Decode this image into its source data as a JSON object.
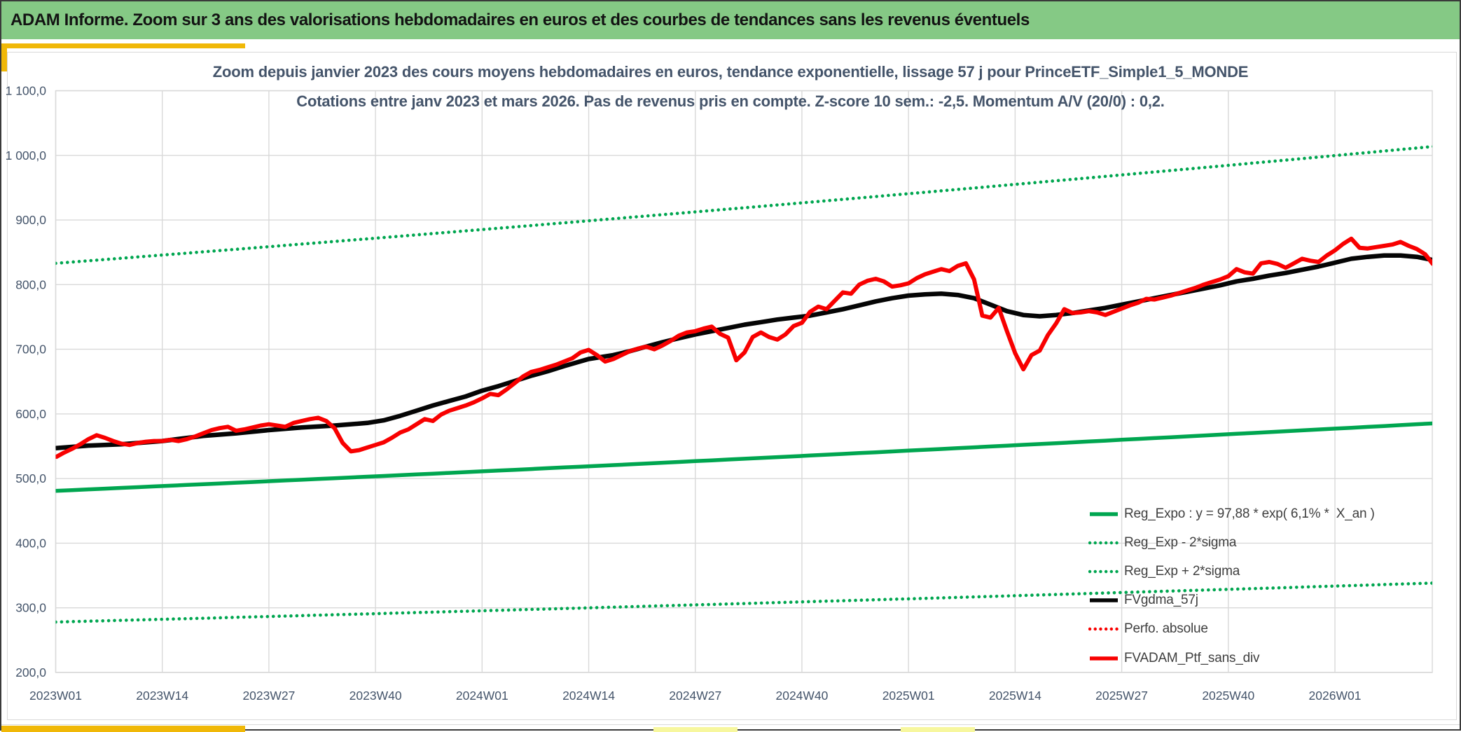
{
  "header": {
    "title": "ADAM Informe. Zoom sur 3 ans des valorisations hebdomadaires en euros et des courbes de tendances sans les revenus éventuels"
  },
  "chart": {
    "title_line1": "Zoom depuis janvier 2023 des cours moyens hebdomadaires en euros, tendance exponentielle, lissage 57 j pour PrinceETF_Simple1_5_MONDE",
    "title_line2": "Cotations entre janv 2023 et mars 2026. Pas de revenus pris en compte. Z-score 10 sem.: -2,5. Momentum A/V (20/0) : 0,2.",
    "y_labels": [
      "1 100,0",
      "1 000,0",
      "900,0",
      "800,0",
      "700,0",
      "600,0",
      "500,0",
      "400,0",
      "300,0",
      "200,0"
    ],
    "x_labels": [
      "2023W01",
      "2023W14",
      "2023W27",
      "2023W40",
      "2024W01",
      "2024W14",
      "2024W27",
      "2024W40",
      "2025W01",
      "2025W14",
      "2025W27",
      "2025W40",
      "2026W01"
    ],
    "legend": [
      {
        "label": "Reg_Expo : y = 97,88 * exp( 6,1% *  X_an )",
        "color": "#00A650",
        "style": "solid"
      },
      {
        "label": "Reg_Exp - 2*sigma",
        "color": "#00A650",
        "style": "dotted"
      },
      {
        "label": "Reg_Exp + 2*sigma",
        "color": "#00A650",
        "style": "dotted"
      },
      {
        "label": "FVgdma_57j",
        "color": "#050505",
        "style": "solid"
      },
      {
        "label": "Perfo. absolue",
        "color": "#F80000",
        "style": "dotted"
      },
      {
        "label": "FVADAM_Ptf_sans_div",
        "color": "#F80000",
        "style": "solid"
      }
    ],
    "colors": {
      "green": "#00A650",
      "red": "#F80000",
      "black": "#050505",
      "grid": "#D9D9D9",
      "axis_text": "#44546A",
      "header_green": "#85C985",
      "gold": "#F0B808",
      "pale_yellow": "#F7F79E",
      "title_text": "#44546A"
    }
  },
  "chart_data": {
    "type": "line",
    "title": "Zoom depuis janvier 2023 des cours moyens hebdomadaires en euros, tendance exponentielle, lissage 57 j pour PrinceETF_Simple1_5_MONDE",
    "x_axis": {
      "unit": "ISO week",
      "start": "2023W01",
      "end": "2026W13",
      "weeks_total": 168,
      "tick_week_indices": [
        0,
        13,
        26,
        39,
        52,
        65,
        78,
        91,
        104,
        117,
        130,
        143,
        156
      ],
      "tick_labels": [
        "2023W01",
        "2023W14",
        "2023W27",
        "2023W40",
        "2024W01",
        "2024W14",
        "2024W27",
        "2024W40",
        "2025W01",
        "2025W14",
        "2025W27",
        "2025W40",
        "2026W01"
      ]
    },
    "y_axis": {
      "min": 200,
      "max": 1100,
      "step": 100,
      "grid": true
    },
    "legend_position": "inside-bottom-right",
    "series": [
      {
        "name": "Reg_Expo : y = 97,88 * exp( 6,1% *  X_an )",
        "type": "exponential-trend",
        "style": "solid",
        "color": "#00A650",
        "model": {
          "start_value": 481,
          "annual_growth_rate": 0.061,
          "end_value": 585
        }
      },
      {
        "name": "Reg_Exp - 2*sigma",
        "type": "exponential-trend",
        "style": "dotted",
        "color": "#00A650",
        "model": {
          "start_value": 278,
          "annual_growth_rate": 0.061,
          "end_value": 338
        }
      },
      {
        "name": "Reg_Exp + 2*sigma",
        "type": "exponential-trend",
        "style": "dotted",
        "color": "#00A650",
        "model": {
          "start_value": 833,
          "annual_growth_rate": 0.061,
          "end_value": 1014
        }
      },
      {
        "name": "FVgdma_57j",
        "type": "smoothed-line",
        "style": "solid",
        "color": "#050505",
        "anchor_points": [
          [
            0,
            547
          ],
          [
            4,
            551
          ],
          [
            8,
            553
          ],
          [
            13,
            558
          ],
          [
            18,
            566
          ],
          [
            22,
            570
          ],
          [
            26,
            575
          ],
          [
            30,
            579
          ],
          [
            34,
            582
          ],
          [
            38,
            586
          ],
          [
            40,
            590
          ],
          [
            42,
            597
          ],
          [
            44,
            605
          ],
          [
            46,
            613
          ],
          [
            48,
            620
          ],
          [
            50,
            627
          ],
          [
            52,
            636
          ],
          [
            54,
            643
          ],
          [
            56,
            651
          ],
          [
            58,
            659
          ],
          [
            60,
            666
          ],
          [
            62,
            674
          ],
          [
            65,
            685
          ],
          [
            68,
            691
          ],
          [
            70,
            697
          ],
          [
            72,
            704
          ],
          [
            74,
            711
          ],
          [
            76,
            717
          ],
          [
            78,
            723
          ],
          [
            80,
            728
          ],
          [
            82,
            733
          ],
          [
            84,
            738
          ],
          [
            86,
            742
          ],
          [
            88,
            746
          ],
          [
            90,
            749
          ],
          [
            92,
            752
          ],
          [
            94,
            757
          ],
          [
            96,
            762
          ],
          [
            98,
            768
          ],
          [
            100,
            774
          ],
          [
            102,
            779
          ],
          [
            104,
            783
          ],
          [
            106,
            785
          ],
          [
            108,
            786
          ],
          [
            110,
            784
          ],
          [
            112,
            779
          ],
          [
            114,
            769
          ],
          [
            116,
            759
          ],
          [
            118,
            753
          ],
          [
            120,
            751
          ],
          [
            122,
            753
          ],
          [
            124,
            756
          ],
          [
            126,
            760
          ],
          [
            128,
            764
          ],
          [
            130,
            769
          ],
          [
            132,
            774
          ],
          [
            134,
            779
          ],
          [
            136,
            784
          ],
          [
            138,
            789
          ],
          [
            140,
            794
          ],
          [
            142,
            799
          ],
          [
            144,
            805
          ],
          [
            146,
            809
          ],
          [
            148,
            814
          ],
          [
            150,
            818
          ],
          [
            152,
            823
          ],
          [
            154,
            828
          ],
          [
            156,
            834
          ],
          [
            158,
            840
          ],
          [
            160,
            843
          ],
          [
            162,
            845
          ],
          [
            164,
            845
          ],
          [
            166,
            843
          ],
          [
            168,
            838
          ]
        ]
      },
      {
        "name": "Perfo. absolue",
        "type": "line",
        "style": "dotted",
        "color": "#F80000",
        "note": "coincides with FVADAM_Ptf_sans_div (hidden beneath it)",
        "same_as": "FVADAM_Ptf_sans_div"
      },
      {
        "name": "FVADAM_Ptf_sans_div",
        "type": "line",
        "style": "solid",
        "color": "#F80000",
        "first_week": 0,
        "weekly_values": [
          533,
          540,
          546,
          553,
          561,
          567,
          563,
          558,
          554,
          552,
          555,
          557,
          558,
          558,
          560,
          558,
          561,
          565,
          570,
          575,
          578,
          580,
          574,
          576,
          579,
          582,
          584,
          582,
          580,
          586,
          589,
          592,
          594,
          589,
          578,
          555,
          542,
          544,
          548,
          552,
          556,
          563,
          571,
          576,
          584,
          592,
          589,
          599,
          605,
          609,
          613,
          618,
          624,
          631,
          629,
          638,
          648,
          658,
          665,
          668,
          672,
          676,
          681,
          686,
          695,
          699,
          691,
          681,
          685,
          691,
          697,
          701,
          704,
          700,
          706,
          713,
          721,
          726,
          728,
          732,
          735,
          724,
          718,
          683,
          695,
          719,
          726,
          719,
          715,
          723,
          736,
          741,
          758,
          766,
          762,
          775,
          788,
          786,
          800,
          806,
          809,
          805,
          797,
          799,
          802,
          810,
          816,
          820,
          824,
          821,
          829,
          833,
          808,
          752,
          749,
          764,
          728,
          694,
          669,
          691,
          698,
          722,
          740,
          762,
          756,
          757,
          759,
          757,
          753,
          758,
          763,
          768,
          772,
          778,
          777,
          780,
          783,
          787,
          791,
          795,
          800,
          804,
          808,
          813,
          824,
          819,
          817,
          833,
          835,
          832,
          826,
          833,
          840,
          837,
          835,
          845,
          853,
          863,
          871,
          857,
          856,
          858,
          860,
          862,
          866,
          860,
          855,
          847,
          831
        ]
      }
    ]
  }
}
